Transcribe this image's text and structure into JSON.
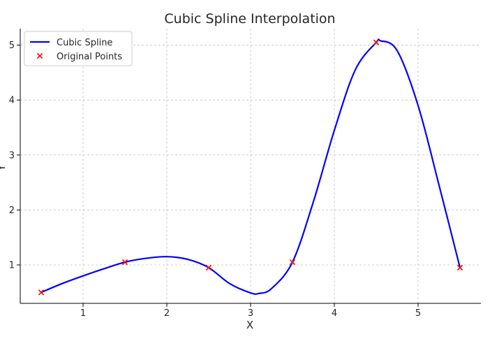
{
  "chart_data": {
    "type": "line",
    "title": "Cubic Spline Interpolation",
    "xlabel": "X",
    "ylabel": "Y",
    "xlim": [
      0.25,
      5.75
    ],
    "ylim": [
      0.3,
      5.3
    ],
    "xticks": [
      1,
      2,
      3,
      4,
      5
    ],
    "yticks": [
      1,
      2,
      3,
      4,
      5
    ],
    "grid": true,
    "legend_position": "top-left",
    "series": [
      {
        "name": "Cubic Spline",
        "kind": "line",
        "color": "#0000ff",
        "x": [
          0.5,
          0.75,
          1.0,
          1.25,
          1.5,
          1.75,
          2.0,
          2.25,
          2.5,
          2.75,
          3.0,
          3.1,
          3.25,
          3.5,
          3.75,
          4.0,
          4.25,
          4.5,
          4.55,
          4.75,
          5.0,
          5.25,
          5.5
        ],
        "y": [
          0.5,
          0.66,
          0.8,
          0.93,
          1.05,
          1.12,
          1.15,
          1.1,
          0.95,
          0.66,
          0.49,
          0.48,
          0.57,
          1.05,
          2.15,
          3.45,
          4.55,
          5.05,
          5.08,
          4.9,
          3.9,
          2.45,
          0.95
        ]
      },
      {
        "name": "Original Points",
        "kind": "scatter",
        "marker": "x",
        "color": "#ff0000",
        "x": [
          0.5,
          1.5,
          2.5,
          3.5,
          4.5,
          5.5
        ],
        "y": [
          0.5,
          1.05,
          0.95,
          1.05,
          5.05,
          0.95
        ]
      }
    ]
  }
}
